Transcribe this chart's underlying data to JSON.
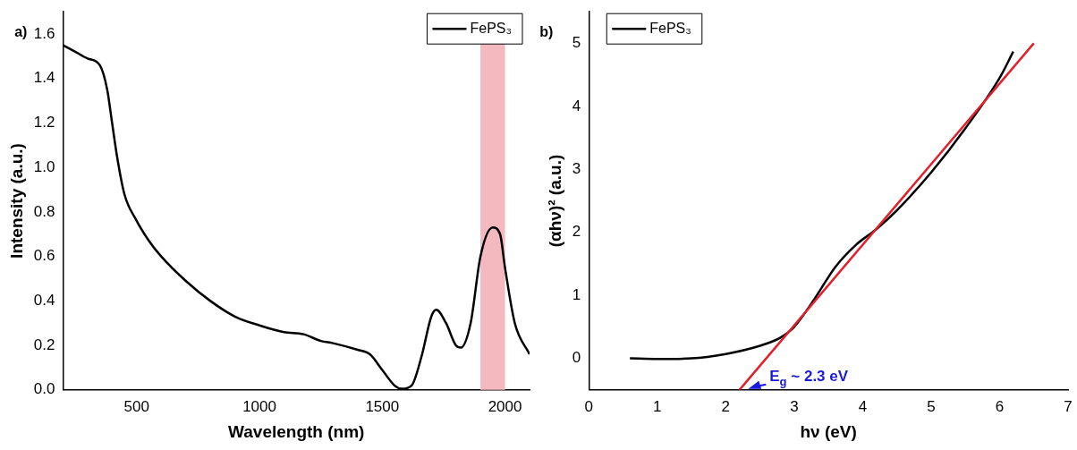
{
  "chart_data": [
    {
      "type": "line",
      "xlabel": "Wavelength (nm)",
      "ylabel": "Intensity (a.u.)",
      "annotations": [
        "a)"
      ],
      "xlim": [
        200,
        2100
      ],
      "xticks": [
        500,
        1000,
        1500,
        2000
      ],
      "ylim": [
        0,
        1.7
      ],
      "yticks": [
        {
          "value": 0,
          "label": "0.0"
        },
        0.2,
        0.4,
        0.6,
        0.8,
        {
          "value": 1,
          "label": "1.0"
        },
        1.2,
        1.4,
        1.6
      ],
      "grid": false,
      "legend": "top right",
      "marker": "none",
      "line_style": "solid",
      "bands": [
        {
          "axis": "x",
          "from": 1900,
          "to": 2000,
          "color": "#f4b8bf"
        }
      ],
      "series": [
        {
          "name": "FePS₃",
          "color": "#000000",
          "x": [
            200,
            250,
            300,
            350,
            380,
            400,
            420,
            450,
            500,
            550,
            600,
            700,
            800,
            900,
            1000,
            1100,
            1180,
            1250,
            1300,
            1400,
            1450,
            1500,
            1550,
            1580,
            1620,
            1660,
            1700,
            1720,
            1760,
            1800,
            1820,
            1860,
            1900,
            1950,
            1980,
            2000,
            2040,
            2100
          ],
          "values": [
            1.55,
            1.52,
            1.49,
            1.46,
            1.35,
            1.2,
            1.05,
            0.88,
            0.76,
            0.67,
            0.6,
            0.49,
            0.4,
            0.33,
            0.29,
            0.26,
            0.25,
            0.22,
            0.21,
            0.18,
            0.16,
            0.09,
            0.02,
            0.005,
            0.02,
            0.15,
            0.33,
            0.36,
            0.3,
            0.2,
            0.19,
            0.3,
            0.6,
            0.73,
            0.7,
            0.55,
            0.3,
            0.16
          ]
        }
      ]
    },
    {
      "type": "line",
      "xlabel": "hν (eV)",
      "ylabel": "(αhν)² (a.u.)",
      "annotations": [
        "b)",
        {
          "text": "E$_{g}$ ~ 2.3 eV",
          "x": 2.3,
          "y": -0.5
        }
      ],
      "xlim": [
        0,
        7
      ],
      "xticks": [
        0,
        1,
        2,
        3,
        4,
        5,
        6,
        7
      ],
      "ylim": [
        -0.5,
        5.5
      ],
      "yticks": [
        0,
        1,
        2,
        3,
        4,
        5
      ],
      "grid": false,
      "legend": "top left",
      "marker": "none",
      "line_style": "solid",
      "series": [
        {
          "name": "FePS₃",
          "color": "#000000",
          "x": [
            0.6,
            1,
            1.5,
            2,
            2.5,
            2.8,
            3,
            3.3,
            3.6,
            3.9,
            4.2,
            4.5,
            5,
            5.5,
            6,
            6.2
          ],
          "values": [
            0,
            -0.01,
            0,
            0.07,
            0.2,
            0.33,
            0.5,
            0.95,
            1.45,
            1.8,
            2.05,
            2.35,
            2.95,
            3.65,
            4.45,
            4.87
          ]
        },
        {
          "type": "line",
          "color": "#e3202c",
          "x": [
            2.2,
            6.5
          ],
          "values": [
            -0.5,
            5.0
          ]
        }
      ]
    }
  ]
}
